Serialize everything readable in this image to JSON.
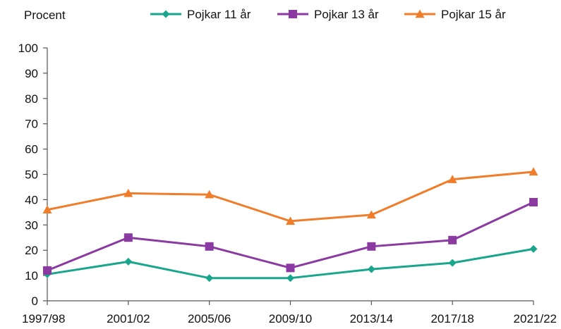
{
  "chart_data": {
    "type": "line",
    "ylabel": "Procent",
    "ylim": [
      0,
      100
    ],
    "y_ticks": [
      "0",
      "10",
      "20",
      "30",
      "40",
      "50",
      "60",
      "70",
      "80",
      "90",
      "100"
    ],
    "categories": [
      "1997/98",
      "2001/02",
      "2005/06",
      "2009/10",
      "2013/14",
      "2017/18",
      "2021/22"
    ],
    "grid": false,
    "legend_position": "top",
    "series": [
      {
        "name": "Pojkar 11 år",
        "color": "#1aa68c",
        "marker": "diamond",
        "values": [
          10.5,
          15.5,
          9,
          9,
          12.5,
          15,
          20.5
        ]
      },
      {
        "name": "Pojkar 13 år",
        "color": "#8a3aa0",
        "marker": "square",
        "values": [
          12,
          25,
          21.5,
          13,
          21.5,
          24,
          39
        ]
      },
      {
        "name": "Pojkar 15 år",
        "color": "#f07d2a",
        "marker": "triangle",
        "values": [
          36,
          42.5,
          42,
          31.5,
          34,
          48,
          51
        ]
      }
    ]
  }
}
